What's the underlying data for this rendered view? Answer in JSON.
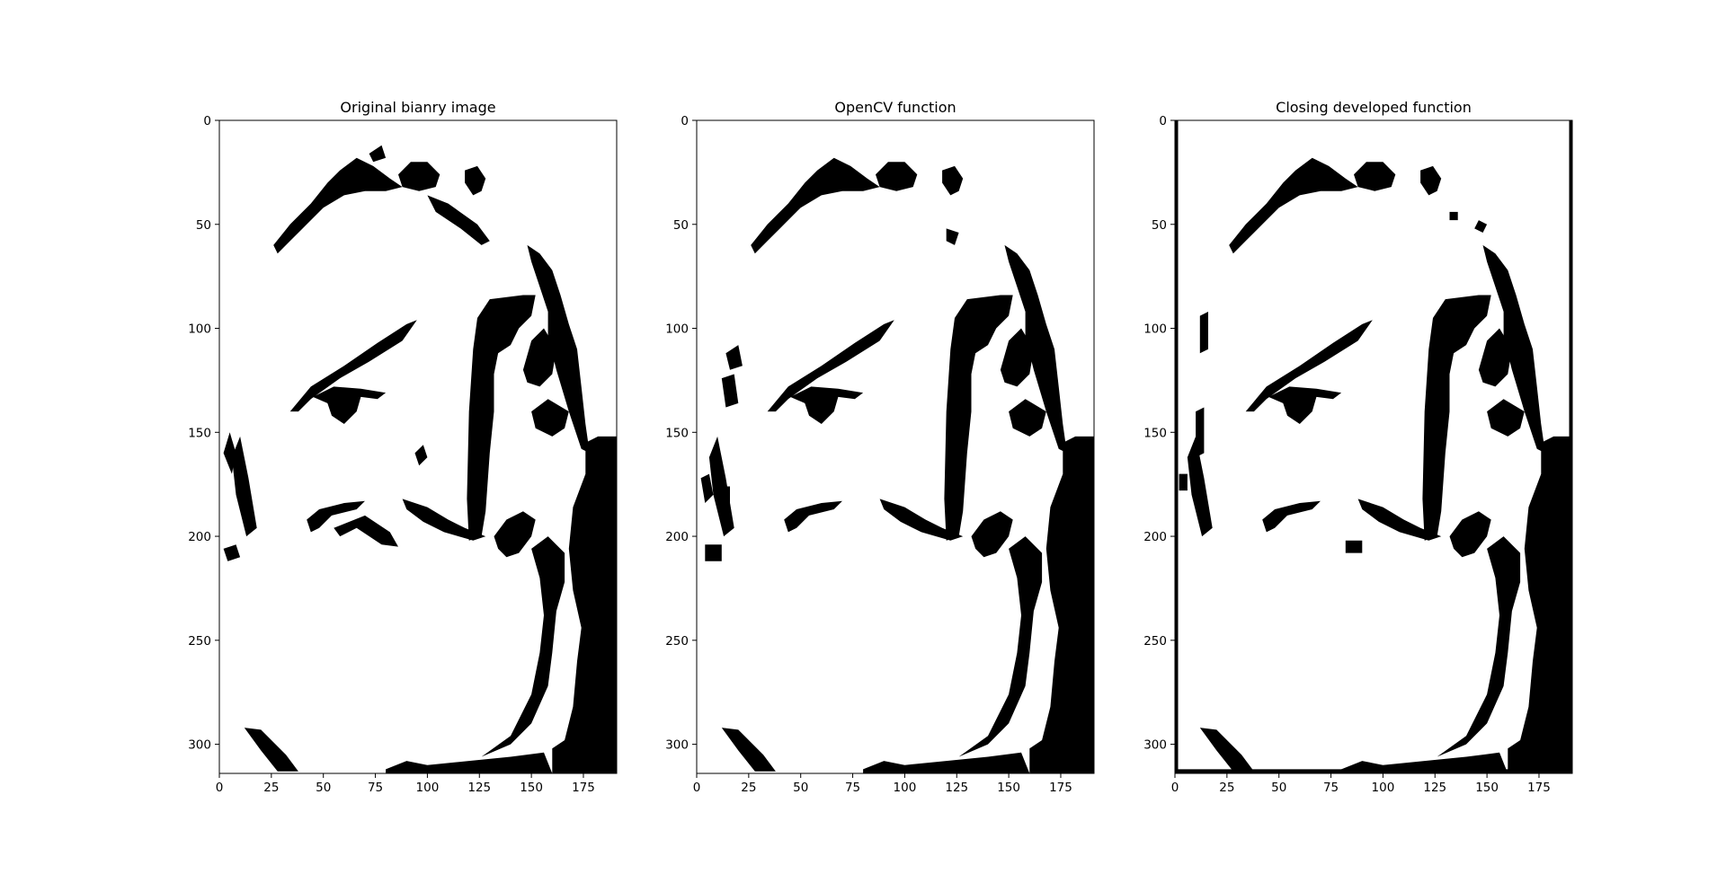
{
  "chart_data": [
    {
      "type": "heatmap",
      "title": "Original bianry image",
      "xlabel": "",
      "ylabel": "",
      "xlim": [
        0,
        191
      ],
      "ylim": [
        314,
        0
      ],
      "xticks": [
        0,
        25,
        50,
        75,
        100,
        125,
        150,
        175
      ],
      "yticks": [
        0,
        50,
        100,
        150,
        200,
        250,
        300
      ],
      "colormap": "binary (0 = black, 1 = white)"
    },
    {
      "type": "heatmap",
      "title": "OpenCV function",
      "xlabel": "",
      "ylabel": "",
      "xlim": [
        0,
        191
      ],
      "ylim": [
        314,
        0
      ],
      "xticks": [
        0,
        25,
        50,
        75,
        100,
        125,
        150,
        175
      ],
      "yticks": [
        0,
        50,
        100,
        150,
        200,
        250,
        300
      ],
      "colormap": "binary (0 = black, 1 = white)"
    },
    {
      "type": "heatmap",
      "title": "Closing developed function",
      "xlabel": "",
      "ylabel": "",
      "xlim": [
        0,
        191
      ],
      "ylim": [
        314,
        0
      ],
      "xticks": [
        0,
        25,
        50,
        75,
        100,
        125,
        150,
        175
      ],
      "yticks": [
        0,
        50,
        100,
        150,
        200,
        250,
        300
      ],
      "colormap": "binary (0 = black, 1 = white)"
    }
  ],
  "colors": {
    "foreground": "#000000",
    "background": "#ffffff"
  }
}
